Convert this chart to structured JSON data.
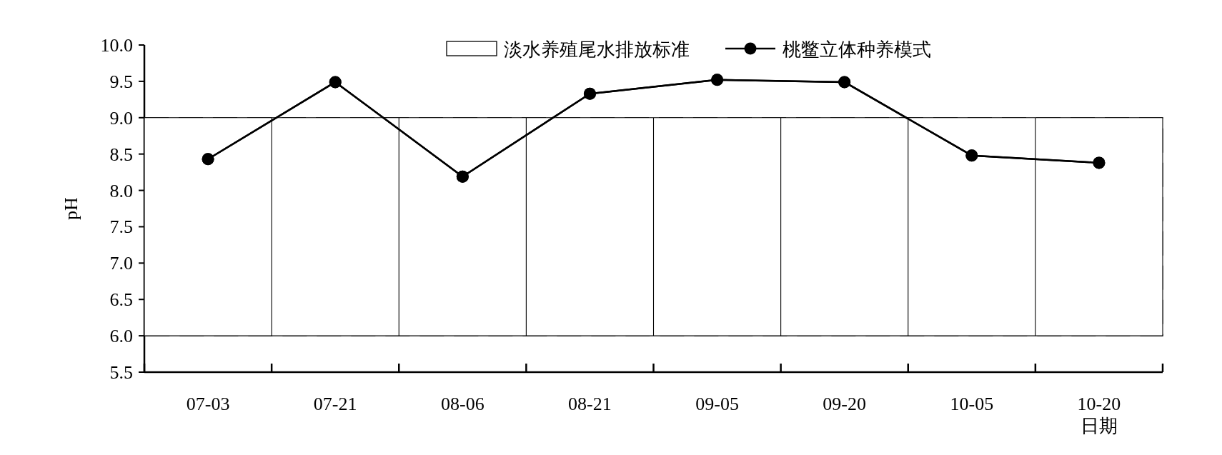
{
  "chart_data": {
    "type": "line",
    "xlabel": "日期",
    "ylabel": "pH",
    "categories": [
      "07-03",
      "07-21",
      "08-06",
      "08-21",
      "09-05",
      "09-20",
      "10-05",
      "10-20"
    ],
    "series": [
      {
        "name": "桃鳖立体种养模式",
        "color": "#000000",
        "marker": "circle",
        "values": [
          8.43,
          9.49,
          8.19,
          9.33,
          9.52,
          9.49,
          8.48,
          8.38
        ]
      }
    ],
    "bands": [
      {
        "axis": "y",
        "from": 6,
        "to": 9,
        "label": "淡水养殖尾水排放标准",
        "color": "#ffffff"
      }
    ],
    "ylim": [
      5.5,
      10.0
    ],
    "yticks": [
      {
        "value": 5.5,
        "label": "5.5"
      },
      {
        "value": 6,
        "label": "6.0"
      },
      {
        "value": 6.5,
        "label": "6.5"
      },
      {
        "value": 7,
        "label": "7.0"
      },
      {
        "value": 7.5,
        "label": "7.5"
      },
      {
        "value": 8,
        "label": "8.0"
      },
      {
        "value": 8.5,
        "label": "8.5"
      },
      {
        "value": 9,
        "label": "9.0"
      },
      {
        "value": 9.5,
        "label": "9.5"
      },
      {
        "value": 10,
        "label": "10.0"
      }
    ],
    "legend": "top"
  }
}
